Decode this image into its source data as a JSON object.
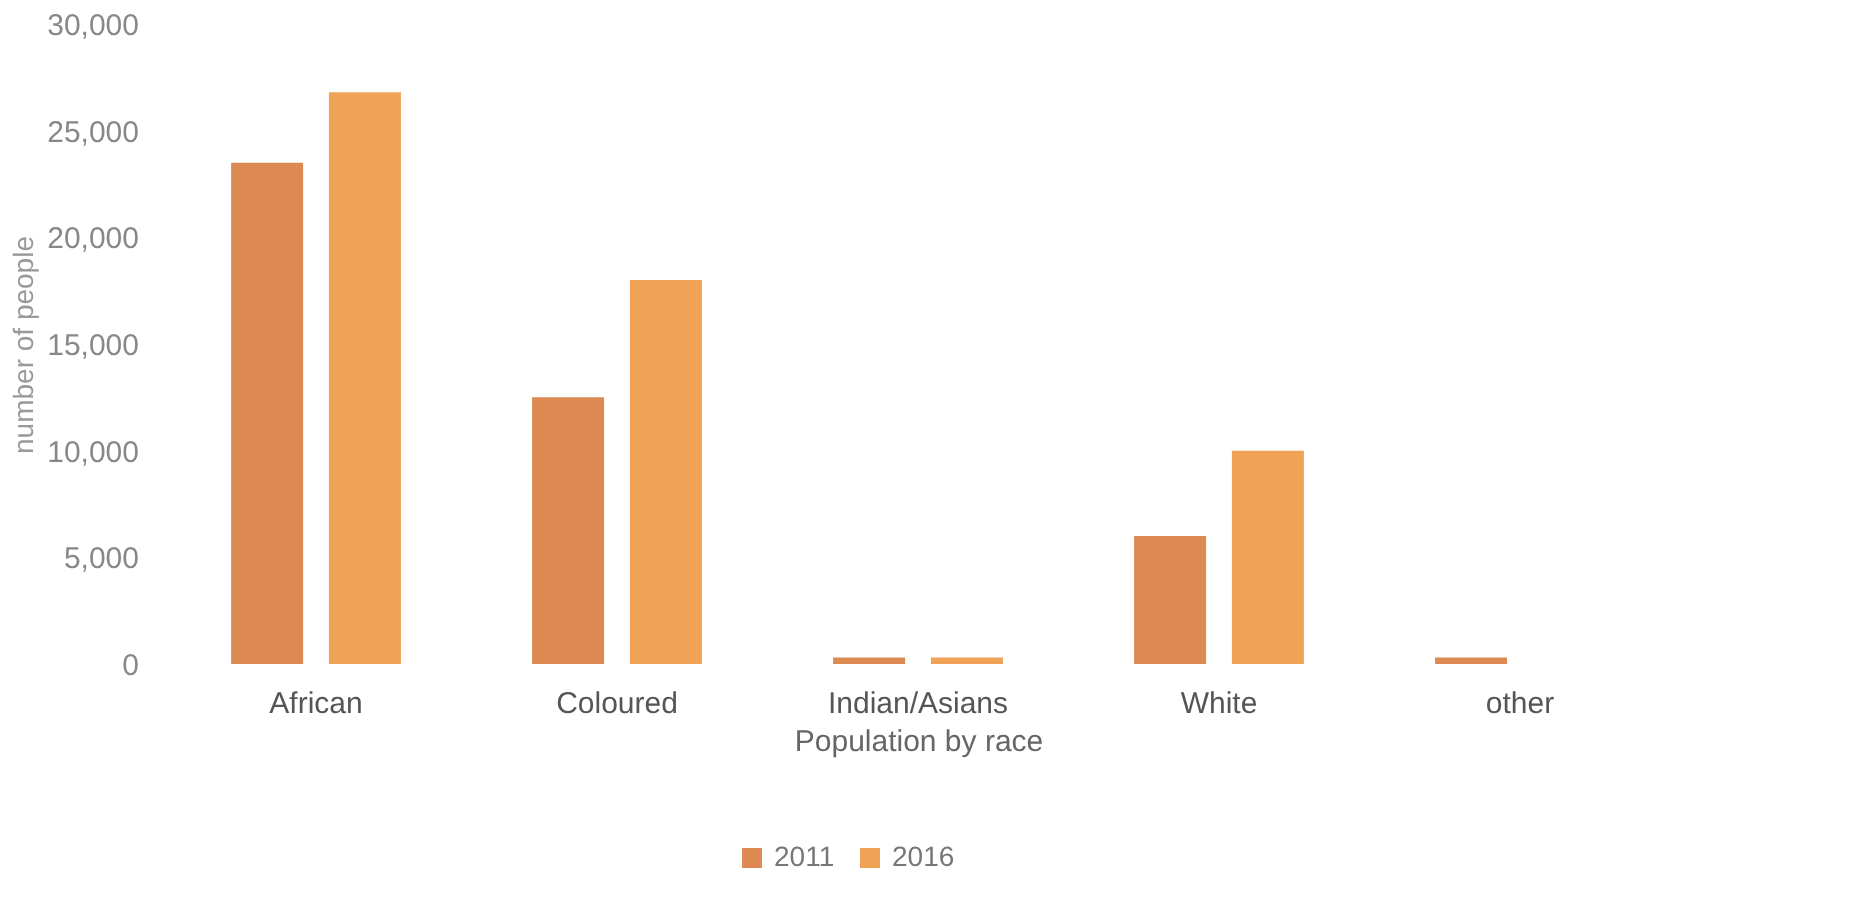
{
  "chart_data": {
    "type": "bar",
    "xlabel": "Population by race",
    "ylabel": "number of people",
    "categories": [
      "African",
      "Coloured",
      "Indian/Asians",
      "White",
      "other"
    ],
    "series": [
      {
        "name": "2011",
        "color": "#dc8a52",
        "values": [
          23500,
          12500,
          300,
          6000,
          300
        ]
      },
      {
        "name": "2016",
        "color": "#f0a257",
        "values": [
          26800,
          18000,
          300,
          10000,
          null
        ]
      }
    ],
    "ylim": [
      0,
      30000
    ],
    "yticks": [
      0,
      {
        "value": 5000,
        "label": "5,000"
      },
      {
        "value": 10000,
        "label": "10,000"
      },
      {
        "value": 15000,
        "label": "15,000"
      },
      {
        "value": 20000,
        "label": "20,000"
      },
      {
        "value": 25000,
        "label": "25,000"
      },
      {
        "value": 30000,
        "label": "30,000"
      }
    ],
    "grid": false,
    "legend": "bottom"
  }
}
